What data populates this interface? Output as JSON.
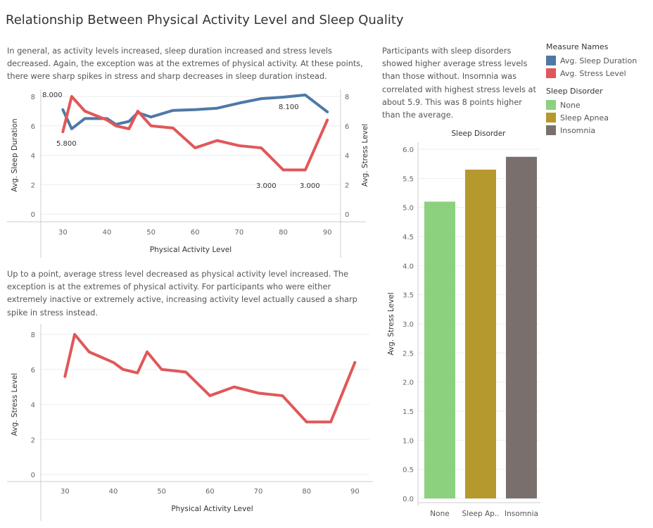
{
  "title": "Relationship Between Physical Activity Level and Sleep Quality",
  "descriptions": {
    "top_left": "In general, as activity levels increased, sleep duration increased and stress levels decreased. Again, the exception was at the extremes of physical activity. At these points, there were sharp spikes in stress and sharp decreases in sleep duration instead.",
    "bottom_left": "Up to a point, average stress level decreased as physical activity level increased. The exception is at the extremes of physical activity. For participants who were either extremely inactive or extremely active, increasing activity level actually caused a sharp spike in stress instead.",
    "right": "Participants with sleep disorders showed higher average stress levels than those without. Insomnia was correlated with highest stress levels at about 5.9. This was 8 points higher than the average."
  },
  "legends": {
    "measure_names": {
      "title": "Measure Names",
      "items": [
        {
          "label": "Avg. Sleep Duration",
          "color": "#4e79a7"
        },
        {
          "label": "Avg. Stress Level",
          "color": "#e15759"
        }
      ]
    },
    "sleep_disorder": {
      "title": "Sleep Disorder",
      "items": [
        {
          "label": "None",
          "color": "#8cd17d"
        },
        {
          "label": "Sleep Apnea",
          "color": "#b6992d"
        },
        {
          "label": "Insomnia",
          "color": "#79706e"
        }
      ]
    }
  },
  "chart_data": [
    {
      "type": "line",
      "title": "",
      "xlabel": "Physical Activity Level",
      "ylabel_left": "Avg. Sleep Duration",
      "ylabel_right": "Avg. Stress Level",
      "x_ticks": [
        30,
        40,
        50,
        60,
        70,
        80,
        90
      ],
      "xlim": [
        25,
        93
      ],
      "y_ticks": [
        0,
        2,
        4,
        6,
        8
      ],
      "ylim": [
        0,
        8
      ],
      "x": [
        30,
        32,
        35,
        40,
        42,
        45,
        47,
        50,
        55,
        60,
        65,
        70,
        75,
        80,
        85,
        90
      ],
      "series": [
        {
          "name": "Avg. Sleep Duration",
          "axis": "left",
          "color": "#4e79a7",
          "values": [
            7.1,
            5.8,
            6.5,
            6.5,
            6.1,
            6.3,
            6.9,
            6.6,
            7.05,
            7.1,
            7.2,
            7.55,
            7.85,
            7.95,
            8.1,
            6.95
          ]
        },
        {
          "name": "Avg. Stress Level",
          "axis": "right",
          "color": "#e15759",
          "values": [
            5.6,
            8.0,
            7.0,
            6.4,
            6.0,
            5.8,
            7.0,
            6.0,
            5.85,
            4.5,
            5.0,
            4.65,
            4.5,
            3.0,
            3.0,
            6.4
          ]
        }
      ],
      "annotations": [
        "8.000",
        "5.800",
        "8.100",
        "3.000",
        "3.000"
      ]
    },
    {
      "type": "line",
      "title": "",
      "xlabel": "Physical Activity Level",
      "ylabel": "Avg. Stress Level",
      "x_ticks": [
        30,
        40,
        50,
        60,
        70,
        80,
        90
      ],
      "xlim": [
        25,
        93
      ],
      "y_ticks": [
        0,
        2,
        4,
        6,
        8
      ],
      "ylim": [
        0,
        8
      ],
      "x": [
        30,
        32,
        35,
        40,
        42,
        45,
        47,
        50,
        55,
        60,
        65,
        70,
        75,
        80,
        85,
        90
      ],
      "series": [
        {
          "name": "Avg. Stress Level",
          "color": "#e15759",
          "values": [
            5.6,
            8.0,
            7.0,
            6.4,
            6.0,
            5.8,
            7.0,
            6.0,
            5.85,
            4.5,
            5.0,
            4.65,
            4.5,
            3.0,
            3.0,
            6.4
          ]
        }
      ]
    },
    {
      "type": "bar",
      "title": "Sleep Disorder",
      "xlabel": "",
      "ylabel": "Avg. Stress Level",
      "categories": [
        "None",
        "Sleep Ap..",
        "Insomnia"
      ],
      "values": [
        5.1,
        5.65,
        5.87
      ],
      "colors": [
        "#8cd17d",
        "#b6992d",
        "#79706e"
      ],
      "y_ticks": [
        0.0,
        0.5,
        1.0,
        1.5,
        2.0,
        2.5,
        3.0,
        3.5,
        4.0,
        4.5,
        5.0,
        5.5,
        6.0
      ],
      "ylim": [
        0,
        6.0
      ]
    }
  ]
}
